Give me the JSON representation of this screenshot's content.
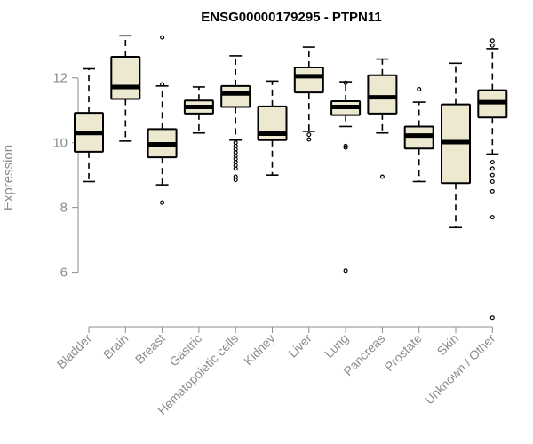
{
  "chart_data": {
    "type": "boxplot",
    "title": "ENSG00000179295 - PTPN11",
    "xlabel": "",
    "ylabel": "Expression",
    "ylim": [
      4.4,
      13.5
    ],
    "yticks": [
      6,
      8,
      10,
      12
    ],
    "box_color": "#ede8d0",
    "categories": [
      "Bladder",
      "Brain",
      "Breast",
      "Gastric",
      "Hematopoietic cells",
      "Kidney",
      "Liver",
      "Lung",
      "Pancreas",
      "Prostate",
      "Skin",
      "Unknown / Other"
    ],
    "boxes": [
      {
        "category": "Bladder",
        "whisker_low": 8.8,
        "q1": 9.72,
        "median": 10.3,
        "q3": 10.92,
        "whisker_high": 12.28,
        "outliers": []
      },
      {
        "category": "Brain",
        "whisker_low": 10.05,
        "q1": 11.35,
        "median": 11.72,
        "q3": 12.65,
        "whisker_high": 13.3,
        "outliers": []
      },
      {
        "category": "Breast",
        "whisker_low": 8.7,
        "q1": 9.55,
        "median": 9.95,
        "q3": 10.42,
        "whisker_high": 11.75,
        "outliers": [
          13.25,
          11.8,
          8.15
        ]
      },
      {
        "category": "Gastric",
        "whisker_low": 10.3,
        "q1": 10.9,
        "median": 11.1,
        "q3": 11.3,
        "whisker_high": 11.72,
        "outliers": []
      },
      {
        "category": "Hematopoietic cells",
        "whisker_low": 10.08,
        "q1": 11.1,
        "median": 11.52,
        "q3": 11.75,
        "whisker_high": 12.68,
        "outliers": [
          10.0,
          9.9,
          9.8,
          9.7,
          9.6,
          9.5,
          9.4,
          9.3,
          9.2,
          8.95,
          8.85
        ]
      },
      {
        "category": "Kidney",
        "whisker_low": 9.0,
        "q1": 10.08,
        "median": 10.28,
        "q3": 11.12,
        "whisker_high": 11.9,
        "outliers": []
      },
      {
        "category": "Liver",
        "whisker_low": 10.35,
        "q1": 11.55,
        "median": 12.05,
        "q3": 12.32,
        "whisker_high": 12.95,
        "outliers": [
          10.25,
          10.1
        ]
      },
      {
        "category": "Lung",
        "whisker_low": 10.5,
        "q1": 10.85,
        "median": 11.1,
        "q3": 11.28,
        "whisker_high": 11.88,
        "outliers": [
          11.85,
          9.9,
          9.85,
          6.05
        ]
      },
      {
        "category": "Pancreas",
        "whisker_low": 10.3,
        "q1": 10.9,
        "median": 11.4,
        "q3": 12.08,
        "whisker_high": 12.58,
        "outliers": [
          8.95
        ]
      },
      {
        "category": "Prostate",
        "whisker_low": 8.8,
        "q1": 9.82,
        "median": 10.22,
        "q3": 10.5,
        "whisker_high": 11.25,
        "outliers": [
          11.65
        ]
      },
      {
        "category": "Skin",
        "whisker_low": 7.38,
        "q1": 8.75,
        "median": 10.02,
        "q3": 11.18,
        "whisker_high": 12.45,
        "outliers": []
      },
      {
        "category": "Unknown / Other",
        "whisker_low": 9.65,
        "q1": 10.78,
        "median": 11.25,
        "q3": 11.62,
        "whisker_high": 12.9,
        "outliers": [
          13.15,
          13.0,
          9.4,
          9.2,
          9.0,
          8.8,
          8.5,
          7.7,
          4.6
        ]
      }
    ]
  }
}
